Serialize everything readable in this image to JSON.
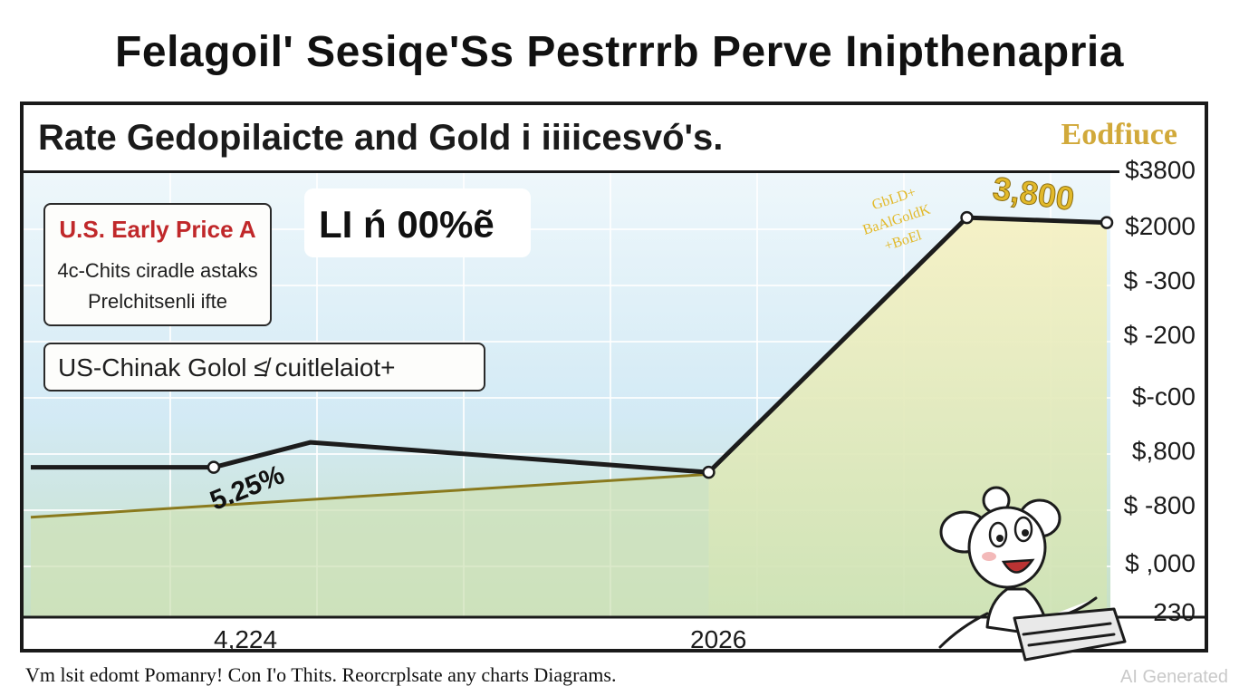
{
  "title": "Felagoil' Sesiqe'Ss Pestrrrb Perve Inipthenapria",
  "subtitle": "Rate Gedopilaicte and Gold i iiiicesvó's.",
  "corner_label": "Eodfiuce",
  "callouts": {
    "box1": {
      "title": "U.S. Early Price A",
      "line1": "4c-Chits ciradle astaks",
      "line2": "Prelchitsenli ifte"
    },
    "box2": {
      "text": "US-Chinak Golol ≰ cuitlelaiot+"
    },
    "rate": "LI ń 00%ẽ"
  },
  "annotations": {
    "rate_label": "5.25%",
    "peak_label": "3,800",
    "handwritten": [
      "GbLD+",
      "BaAlGoldK",
      "+BoEl"
    ]
  },
  "footnote": "Vm lsit edomt Pomanry! Con I'o Thits. Reorcrplsate any charts Diagrams.",
  "watermark": "AI Generated",
  "colors": {
    "black_line": "#1c1c1c",
    "gold_line": "#8a7a1e",
    "gold_fill": "#e9dfa6",
    "green_fill": "#cfe2b8",
    "blue_fill": "#d5ebf6",
    "accent_red": "#c0282a",
    "accent_gold": "#e2b92a"
  },
  "chart_data": {
    "type": "line",
    "x_tick_labels": [
      "4,224",
      "2026"
    ],
    "y_tick_labels": [
      "$3800",
      "$2000",
      "$ -300",
      "$ -200",
      "$-c00",
      "$,800",
      "$ -800",
      "$ ,000",
      "230"
    ],
    "series": [
      {
        "points": [
          {
            "x": 0.0,
            "y": 5.0
          },
          {
            "x": 0.17,
            "y": 5.0
          },
          {
            "x": 0.26,
            "y": 5.25
          },
          {
            "x": 0.63,
            "y": 4.95
          },
          {
            "x": 0.87,
            "y": 7.5
          },
          {
            "x": 1.0,
            "y": 7.45
          }
        ]
      },
      {
        "points": [
          {
            "x": 0.0,
            "y": 4.5
          },
          {
            "x": 0.63,
            "y": 4.93
          }
        ]
      }
    ],
    "grid": true,
    "legend": "none"
  },
  "icons": [
    "cartoon-mascot-icon"
  ]
}
